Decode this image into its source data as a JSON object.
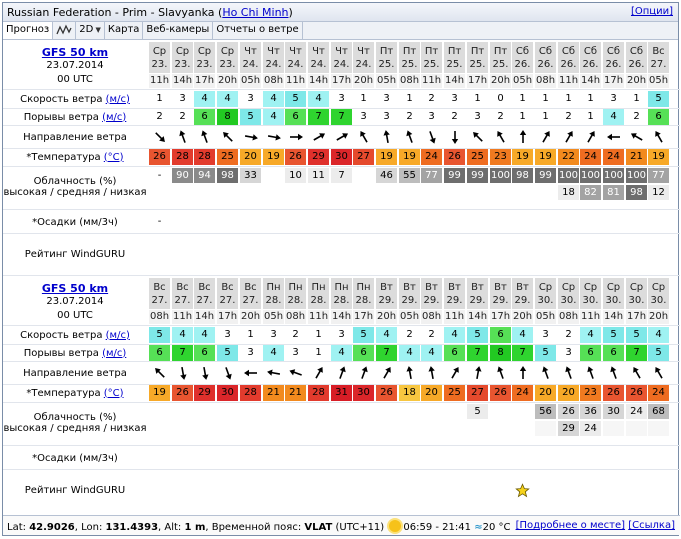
{
  "window": {
    "title_prefix": "Russian Federation - Prim - Slavyanka",
    "title_link": "Ho Chi Minh",
    "options_link": "[Опции]"
  },
  "tabs": [
    {
      "label": "Прогноз",
      "active": true
    },
    {
      "label": "graph-icon",
      "icon": true
    },
    {
      "label": "2D",
      "dropdown": true
    },
    {
      "label": "Карта"
    },
    {
      "label": "Веб-камеры"
    },
    {
      "label": "Отчеты о ветре"
    }
  ],
  "labels": {
    "wind_speed": "Скорость ветра",
    "wind_gusts": "Порывы ветра",
    "wind_dir": "Направление ветра",
    "temperature": "*Температура",
    "cloud1": "Облачность (%)",
    "cloud2": "высокая / средняя / низкая",
    "precip": "*Осадки (мм/3ч)",
    "rating": "Рейтинг WindGURU",
    "unit_ms": "(м/с)",
    "unit_c": "(°C)"
  },
  "blocks": [
    {
      "model": "GFS 50 km",
      "date": "23.07.2014",
      "utc": "00 UTC",
      "days": [
        "Ср",
        "Ср",
        "Ср",
        "Ср",
        "Чт",
        "Чт",
        "Чт",
        "Чт",
        "Чт",
        "Чт",
        "Пт",
        "Пт",
        "Пт",
        "Пт",
        "Пт",
        "Пт",
        "Сб",
        "Сб",
        "Сб",
        "Сб",
        "Сб",
        "Сб",
        "Вс"
      ],
      "dates": [
        "23.",
        "23.",
        "23.",
        "23.",
        "24.",
        "24.",
        "24.",
        "24.",
        "24.",
        "24.",
        "25.",
        "25.",
        "25.",
        "25.",
        "25.",
        "25.",
        "26.",
        "26.",
        "26.",
        "26.",
        "26.",
        "26.",
        "27."
      ],
      "hours": [
        "11h",
        "14h",
        "17h",
        "20h",
        "05h",
        "08h",
        "11h",
        "14h",
        "17h",
        "20h",
        "05h",
        "08h",
        "11h",
        "14h",
        "17h",
        "20h",
        "05h",
        "08h",
        "11h",
        "14h",
        "17h",
        "20h",
        "05h"
      ],
      "wind": [
        1,
        3,
        4,
        4,
        3,
        4,
        5,
        4,
        3,
        1,
        3,
        1,
        2,
        3,
        1,
        0,
        1,
        1,
        1,
        1,
        3,
        1,
        5
      ],
      "gusts": [
        2,
        2,
        6,
        8,
        5,
        4,
        6,
        7,
        7,
        3,
        3,
        2,
        3,
        2,
        3,
        2,
        1,
        1,
        2,
        1,
        4,
        2,
        6
      ],
      "dirs": [
        135,
        -20,
        -20,
        -45,
        100,
        100,
        90,
        60,
        60,
        -30,
        -10,
        -20,
        160,
        180,
        -45,
        -30,
        0,
        30,
        30,
        30,
        -90,
        -60,
        -30
      ],
      "temp": [
        26,
        28,
        28,
        25,
        20,
        19,
        26,
        29,
        30,
        27,
        19,
        19,
        24,
        26,
        25,
        23,
        19,
        19,
        22,
        24,
        24,
        21,
        19
      ],
      "cloud_high": [
        "-",
        "90",
        "94",
        "98",
        "33",
        "",
        "10",
        "11",
        "7",
        "",
        "46",
        "55",
        "77",
        "99",
        "99",
        "100",
        "98",
        "99",
        "100",
        "100",
        "100",
        "100",
        "77"
      ],
      "cloud_mid": [
        "",
        "",
        "",
        "",
        "",
        "",
        "",
        "",
        "",
        "",
        "",
        "",
        "",
        "",
        "",
        "",
        "",
        "",
        "",
        "",
        "",
        "",
        ""
      ],
      "cloud_low": [
        "",
        "",
        "",
        "",
        "",
        "",
        "",
        "",
        "",
        "",
        "",
        "",
        "",
        "",
        "",
        "",
        "",
        "",
        "18",
        "82",
        "81",
        "98",
        "12"
      ],
      "precip": [
        "-",
        "",
        "",
        "",
        "",
        "",
        "",
        "",
        "",
        "",
        "",
        "",
        "",
        "",
        "",
        "",
        "",
        "",
        "",
        "",
        "",
        "",
        ""
      ],
      "rating": [
        "",
        "",
        "",
        "",
        "",
        "",
        "",
        "",
        "",
        "",
        "",
        "",
        "",
        "",
        "",
        "",
        "",
        "",
        "",
        "",
        "",
        "",
        ""
      ]
    },
    {
      "model": "GFS 50 km",
      "date": "23.07.2014",
      "utc": "00 UTC",
      "days": [
        "Вс",
        "Вс",
        "Вс",
        "Вс",
        "Вс",
        "Пн",
        "Пн",
        "Пн",
        "Пн",
        "Пн",
        "Вт",
        "Вт",
        "Вт",
        "Вт",
        "Вт",
        "Вт",
        "Вт",
        "Ср",
        "Ср",
        "Ср",
        "Ср",
        "Ср",
        "Ср"
      ],
      "dates": [
        "27.",
        "27.",
        "27.",
        "27.",
        "27.",
        "28.",
        "28.",
        "28.",
        "28.",
        "28.",
        "29.",
        "29.",
        "29.",
        "29.",
        "29.",
        "29.",
        "29.",
        "30.",
        "30.",
        "30.",
        "30.",
        "30.",
        "30."
      ],
      "hours": [
        "08h",
        "11h",
        "14h",
        "17h",
        "20h",
        "05h",
        "08h",
        "11h",
        "14h",
        "17h",
        "20h",
        "05h",
        "08h",
        "11h",
        "14h",
        "17h",
        "20h",
        "05h",
        "08h",
        "11h",
        "14h",
        "17h",
        "20h"
      ],
      "wind": [
        5,
        4,
        4,
        3,
        1,
        3,
        2,
        1,
        3,
        5,
        4,
        2,
        2,
        4,
        5,
        6,
        4,
        3,
        2,
        4,
        5,
        5,
        4
      ],
      "gusts": [
        6,
        7,
        6,
        5,
        3,
        4,
        3,
        1,
        4,
        6,
        7,
        4,
        4,
        6,
        7,
        8,
        7,
        5,
        3,
        6,
        6,
        7,
        5
      ],
      "dirs": [
        -45,
        170,
        170,
        160,
        -90,
        -80,
        -70,
        30,
        20,
        20,
        30,
        -10,
        -10,
        30,
        10,
        -20,
        0,
        -20,
        -20,
        -20,
        -20,
        -30,
        -30
      ],
      "temp": [
        19,
        26,
        29,
        30,
        28,
        21,
        21,
        28,
        31,
        30,
        26,
        18,
        20,
        25,
        27,
        26,
        24,
        20,
        20,
        23,
        26,
        26,
        24
      ],
      "cloud_high": [
        "",
        "",
        "",
        "",
        "",
        "",
        "",
        "",
        "",
        "",
        "",
        "",
        "",
        "",
        "5",
        "",
        "",
        "56",
        "26",
        "36",
        "30",
        "24",
        "68"
      ],
      "cloud_mid": [
        "",
        "",
        "",
        "",
        "",
        "",
        "",
        "",
        "",
        "",
        "",
        "",
        "",
        "",
        "",
        "",
        "",
        "",
        "29",
        "24",
        "",
        "",
        ""
      ],
      "cloud_low": [
        "",
        "",
        "",
        "",
        "",
        "",
        "",
        "",
        "",
        "",
        "",
        "",
        "",
        "",
        "",
        "",
        "",
        "",
        "",
        "",
        "",
        "",
        ""
      ],
      "precip": [
        "",
        "",
        "",
        "",
        "",
        "",
        "",
        "",
        "",
        "",
        "",
        "",
        "",
        "",
        "",
        "",
        "",
        "",
        "",
        "",
        "",
        "",
        ""
      ],
      "rating": [
        "",
        "",
        "",
        "",
        "",
        "",
        "",
        "",
        "",
        "",
        "",
        "",
        "",
        "",
        "",
        "",
        "1",
        "",
        "",
        "",
        "",
        "",
        ""
      ]
    }
  ],
  "colors": {
    "wind_scale": {
      "0": "#ffffff",
      "1": "#ffffff",
      "2": "#ffffff",
      "3": "#ffffff",
      "4": "#9ff2f2",
      "5": "#7ee8e8",
      "6": "#56e056",
      "7": "#2fd42f",
      "8": "#22c922"
    },
    "temp_scale": {
      "18": "#f7c640",
      "19": "#f7a928",
      "20": "#f7a928",
      "21": "#f28a1e",
      "22": "#f28a1e",
      "23": "#f07a20",
      "24": "#ee6c21",
      "25": "#ee6c21",
      "26": "#e85530",
      "27": "#e54a2d",
      "28": "#e23b2d",
      "29": "#df302c",
      "30": "#db262a",
      "31": "#d81d26"
    },
    "accent": "#0000cc"
  },
  "footer": {
    "lat_label": "Lat:",
    "lat": "42.9026",
    "lon_label": "Lon:",
    "lon": "131.4393",
    "alt_label": "Alt:",
    "alt": "1 m",
    "tz_label": "Временной пояс:",
    "tz": "VLAT",
    "tz_offset": "(UTC+11)",
    "sun": "06:59 - 21:41",
    "water": "20 °C",
    "more_link": "[Подробнее о месте]",
    "ref_link": "[Ссылка]"
  }
}
